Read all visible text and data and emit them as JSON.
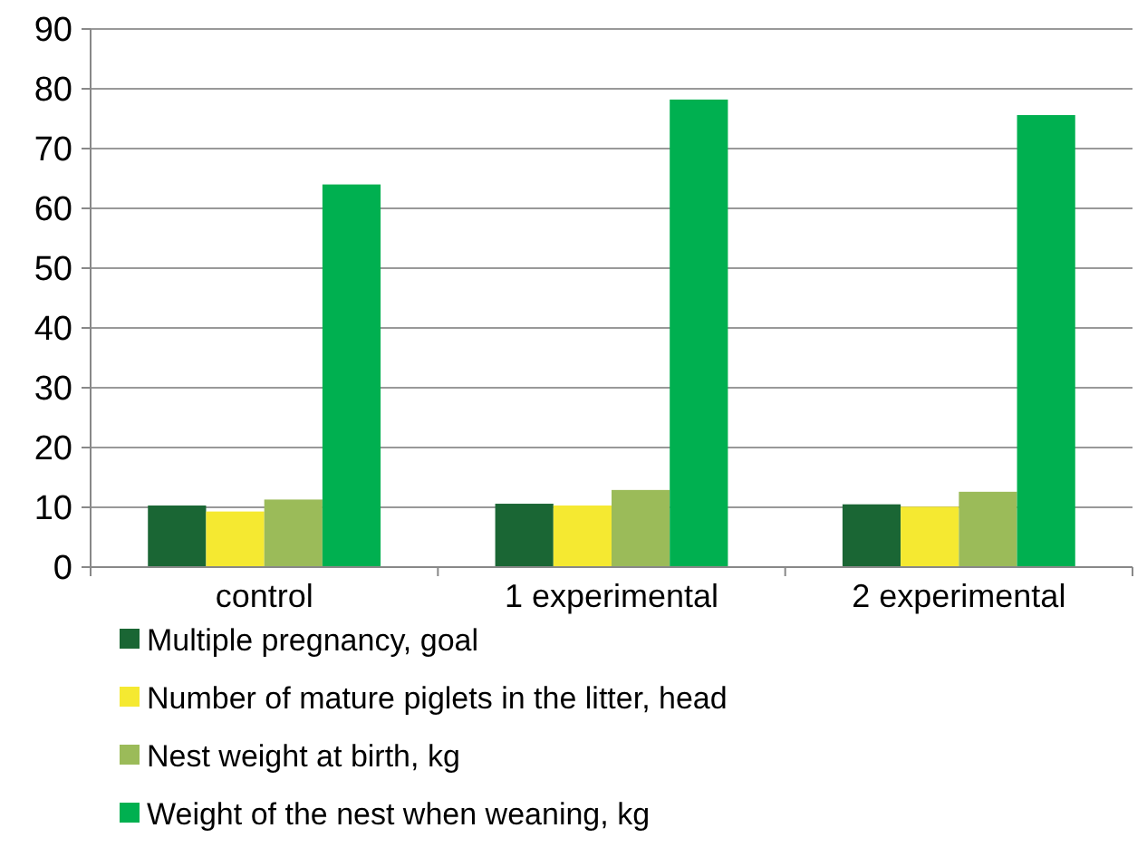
{
  "chart_data": {
    "type": "bar",
    "categories": [
      "control",
      "1 experimental",
      "2 experimental"
    ],
    "series": [
      {
        "name": "Multiple pregnancy, goal",
        "color": "#1a6634",
        "values": [
          10.3,
          10.6,
          10.5
        ]
      },
      {
        "name": "Number of mature piglets in the litter, head",
        "color": "#f5e931",
        "values": [
          9.3,
          10.3,
          10.1
        ]
      },
      {
        "name": "Nest weight at birth, kg",
        "color": "#9bbb59",
        "values": [
          11.3,
          12.9,
          12.6
        ]
      },
      {
        "name": "Weight of the nest when weaning, kg",
        "color": "#00b050",
        "values": [
          64,
          78.2,
          75.6
        ]
      }
    ],
    "ylim": [
      0,
      90
    ],
    "yticks": [
      0,
      10,
      20,
      30,
      40,
      50,
      60,
      70,
      80,
      90
    ],
    "grid": "y",
    "legend": "bottom"
  }
}
